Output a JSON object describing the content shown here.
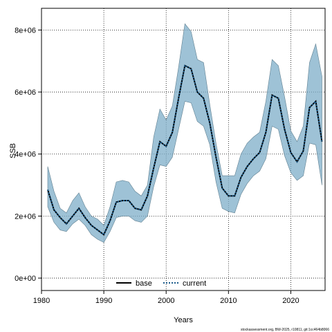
{
  "chart_data": {
    "type": "area",
    "title": "",
    "xlabel": "Years",
    "ylabel": "SSB",
    "xlim": [
      1980,
      2025.5
    ],
    "ylim": [
      -400000,
      8700000
    ],
    "x_ticks": [
      1980,
      1990,
      2000,
      2010,
      2020
    ],
    "x_tick_labels": [
      "1980",
      "1990",
      "2000",
      "2010",
      "2020"
    ],
    "y_ticks": [
      0,
      2000000,
      4000000,
      6000000,
      8000000
    ],
    "y_tick_labels": [
      "0e+00",
      "2e+06",
      "4e+06",
      "6e+06",
      "8e+06"
    ],
    "grid": true,
    "legend_position": "bottom",
    "legend": [
      {
        "label": "base",
        "style": "solid",
        "color": "#000000"
      },
      {
        "label": "current",
        "style": "dotted",
        "color": "#1a5a8a"
      }
    ],
    "band_color": "#7eaec8",
    "x": [
      1981,
      1982,
      1983,
      1984,
      1985,
      1986,
      1987,
      1988,
      1989,
      1990,
      1991,
      1992,
      1993,
      1994,
      1995,
      1996,
      1997,
      1998,
      1999,
      2000,
      2001,
      2002,
      2003,
      2004,
      2005,
      2006,
      2007,
      2008,
      2009,
      2010,
      2011,
      2012,
      2013,
      2014,
      2015,
      2016,
      2017,
      2018,
      2019,
      2020,
      2021,
      2022,
      2023,
      2024,
      2025
    ],
    "series": [
      {
        "name": "base",
        "values": [
          2850000,
          2200000,
          1950000,
          1750000,
          2000000,
          2250000,
          1950000,
          1700000,
          1550000,
          1400000,
          1850000,
          2450000,
          2500000,
          2500000,
          2250000,
          2200000,
          2650000,
          3550000,
          4400000,
          4250000,
          4700000,
          5800000,
          6850000,
          6750000,
          6000000,
          5800000,
          5000000,
          3900000,
          2900000,
          2650000,
          2650000,
          3250000,
          3600000,
          3850000,
          4050000,
          4700000,
          5900000,
          5800000,
          4800000,
          4050000,
          3750000,
          4100000,
          5500000,
          5700000,
          4400000
        ]
      },
      {
        "name": "current",
        "values": [
          2850000,
          2200000,
          1950000,
          1750000,
          2000000,
          2250000,
          1950000,
          1700000,
          1550000,
          1400000,
          1850000,
          2450000,
          2500000,
          2500000,
          2250000,
          2200000,
          2650000,
          3550000,
          4400000,
          4250000,
          4700000,
          5800000,
          6850000,
          6750000,
          6000000,
          5800000,
          5000000,
          3900000,
          2900000,
          2650000,
          2650000,
          3250000,
          3600000,
          3850000,
          4050000,
          4700000,
          5900000,
          5800000,
          4800000,
          4050000,
          3750000,
          4100000,
          5500000,
          5700000,
          4400000
        ]
      }
    ],
    "band_upper": [
      3600000,
      2800000,
      2250000,
      2100000,
      2500000,
      2750000,
      2300000,
      2000000,
      1900000,
      1700000,
      2300000,
      3100000,
      3150000,
      3100000,
      2800000,
      2650000,
      3000000,
      4550000,
      5450000,
      5100000,
      5550000,
      6800000,
      8200000,
      7950000,
      7050000,
      6950000,
      5600000,
      4350000,
      3300000,
      3300000,
      3300000,
      4000000,
      4350000,
      4550000,
      4700000,
      5700000,
      7050000,
      6850000,
      5850000,
      4750000,
      4400000,
      4900000,
      6950000,
      7550000,
      6500000
    ],
    "band_lower": [
      2300000,
      1800000,
      1550000,
      1500000,
      1750000,
      1900000,
      1700000,
      1400000,
      1250000,
      1150000,
      1500000,
      1950000,
      2000000,
      2000000,
      1850000,
      1800000,
      2000000,
      2950000,
      3650000,
      3600000,
      3900000,
      4800000,
      5700000,
      5650000,
      5050000,
      4900000,
      4300000,
      3100000,
      2250000,
      2150000,
      2100000,
      2700000,
      3050000,
      3300000,
      3450000,
      3850000,
      4900000,
      4800000,
      3950000,
      3400000,
      3150000,
      3300000,
      4350000,
      4300000,
      3000000
    ]
  },
  "footnote": "stockassessment.org, BW-2025, r10811, git:1cc464b8066"
}
